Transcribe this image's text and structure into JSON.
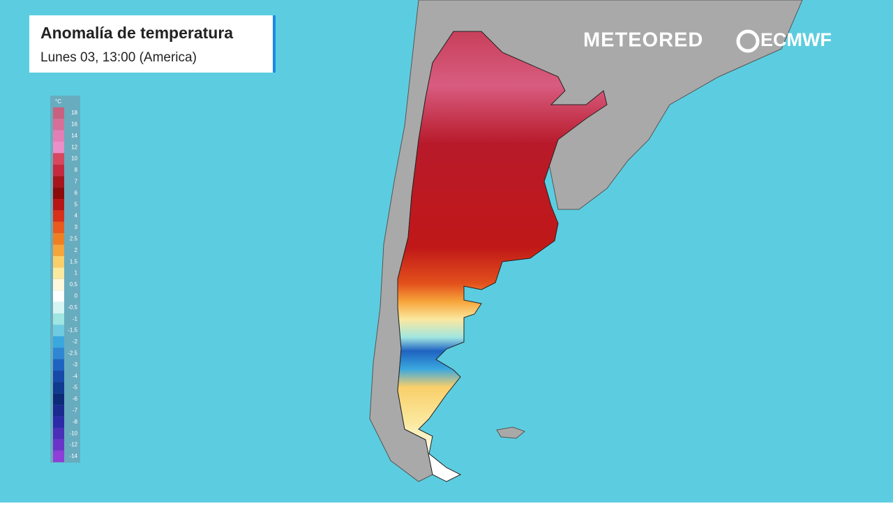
{
  "header": {
    "title": "Anomalía de temperatura",
    "subtitle": "Lunes 03, 13:00 (America)"
  },
  "logos": {
    "brand": "METEORED",
    "partner": "ECMWF"
  },
  "legend": {
    "unit": "°C",
    "items": [
      {
        "label": 18,
        "color": "#c8617f"
      },
      {
        "label": 16,
        "color": "#d76f98"
      },
      {
        "label": 14,
        "color": "#e47fb6"
      },
      {
        "label": 12,
        "color": "#ec8fc8"
      },
      {
        "label": 10,
        "color": "#d8485e"
      },
      {
        "label": 8,
        "color": "#c52a3e"
      },
      {
        "label": 7,
        "color": "#a8141c"
      },
      {
        "label": 6,
        "color": "#8c0a0a"
      },
      {
        "label": 5,
        "color": "#b81616"
      },
      {
        "label": 4,
        "color": "#d9301a"
      },
      {
        "label": 3,
        "color": "#ea5a1c"
      },
      {
        "label": 2.5,
        "color": "#f07f22"
      },
      {
        "label": 2,
        "color": "#f6a53a"
      },
      {
        "label": 1.5,
        "color": "#f9cf6a"
      },
      {
        "label": 1,
        "color": "#fbe9a0"
      },
      {
        "label": 0.5,
        "color": "#fff8dc"
      },
      {
        "label": 0,
        "color": "#ffffff"
      },
      {
        "label": -0.5,
        "color": "#d6f4f2"
      },
      {
        "label": -1,
        "color": "#9fe5e2"
      },
      {
        "label": -1.5,
        "color": "#6fcce0"
      },
      {
        "label": -2,
        "color": "#3aa8de"
      },
      {
        "label": -2.5,
        "color": "#2f86d3"
      },
      {
        "label": -3,
        "color": "#1f63c1"
      },
      {
        "label": -4,
        "color": "#1749a8"
      },
      {
        "label": -5,
        "color": "#103a8f"
      },
      {
        "label": -6,
        "color": "#0d2a78"
      },
      {
        "label": -7,
        "color": "#1a2a8f"
      },
      {
        "label": -8,
        "color": "#2d2aa8"
      },
      {
        "label": -10,
        "color": "#4a2fb8"
      },
      {
        "label": -12,
        "color": "#6b34c8"
      },
      {
        "label": -14,
        "color": "#8f3ed8"
      }
    ]
  }
}
